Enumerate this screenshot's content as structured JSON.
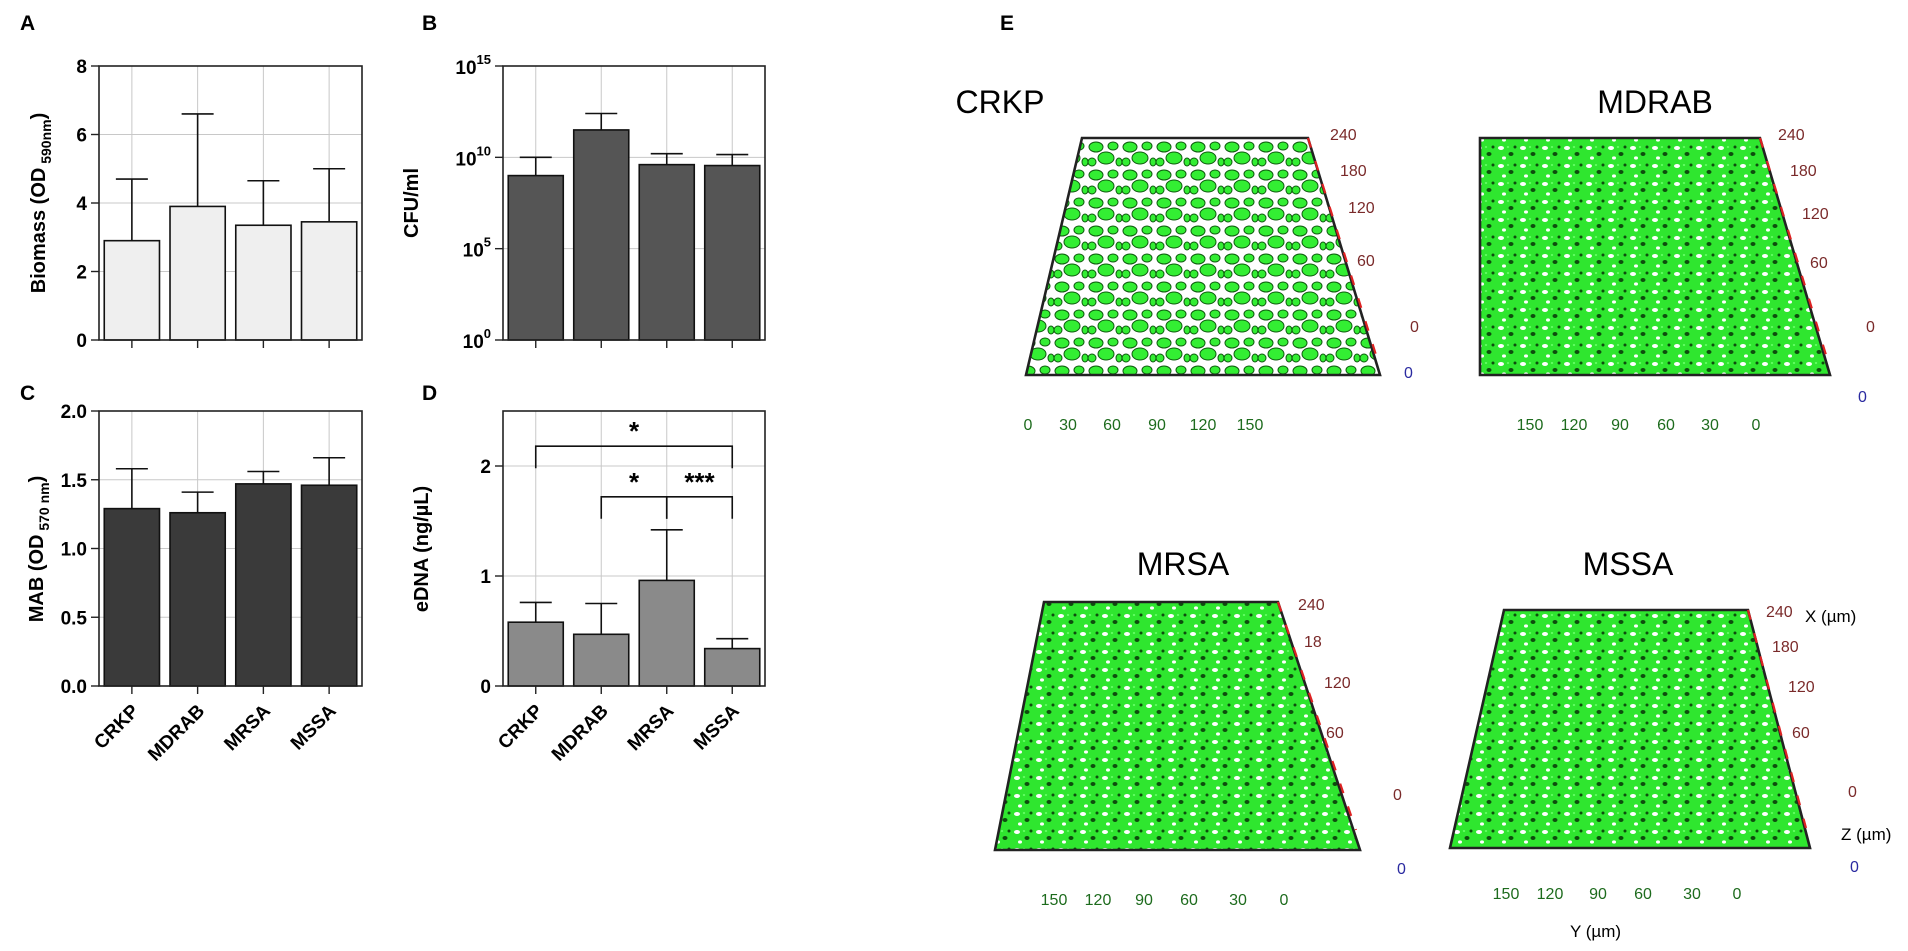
{
  "chart_data": [
    {
      "id": "A",
      "panel_label": "A",
      "type": "bar",
      "categories": [
        "CRKP",
        "MDRAB",
        "MRSA",
        "MSSA"
      ],
      "values": [
        2.9,
        3.9,
        3.35,
        3.45
      ],
      "errors": [
        1.8,
        2.7,
        1.3,
        1.55
      ],
      "ylabel_main": "Biomass (OD",
      "ylabel_sub": "590nm",
      "ylabel_close": ")",
      "ylim": [
        0,
        8
      ],
      "yticks": [
        0,
        2,
        4,
        6,
        8
      ],
      "ytick_labels": [
        "0",
        "2",
        "4",
        "6",
        "8"
      ],
      "bar_color": "#efefef",
      "show_category_labels": false
    },
    {
      "id": "B",
      "panel_label": "B",
      "type": "bar",
      "scale": "log",
      "categories": [
        "CRKP",
        "MDRAB",
        "MRSA",
        "MSSA"
      ],
      "log_values": [
        9.0,
        11.5,
        9.6,
        9.55
      ],
      "log_errors": [
        1.0,
        0.9,
        0.6,
        0.6
      ],
      "ylabel_main": "CFU/ml",
      "ylim_log": [
        0,
        15
      ],
      "yticks_log": [
        0,
        5,
        10,
        15
      ],
      "ytick_bases": [
        "10",
        "10",
        "10",
        "10"
      ],
      "ytick_exps": [
        "0",
        "5",
        "10",
        "15"
      ],
      "bar_color": "#555555",
      "show_category_labels": false
    },
    {
      "id": "C",
      "panel_label": "C",
      "type": "bar",
      "categories": [
        "CRKP",
        "MDRAB",
        "MRSA",
        "MSSA"
      ],
      "values": [
        1.29,
        1.26,
        1.47,
        1.46
      ],
      "errors": [
        0.29,
        0.15,
        0.09,
        0.2
      ],
      "ylabel_main": "MAB (OD",
      "ylabel_sub": "570 nm",
      "ylabel_close": ")",
      "ylim": [
        0,
        2.0
      ],
      "yticks": [
        0,
        0.5,
        1.0,
        1.5,
        2.0
      ],
      "ytick_labels": [
        "0.0",
        "0.5",
        "1.0",
        "1.5",
        "2.0"
      ],
      "bar_color": "#3a3a3a",
      "show_category_labels": true
    },
    {
      "id": "D",
      "panel_label": "D",
      "type": "bar",
      "categories": [
        "CRKP",
        "MDRAB",
        "MRSA",
        "MSSA"
      ],
      "values": [
        0.58,
        0.47,
        0.96,
        0.34
      ],
      "errors": [
        0.18,
        0.28,
        0.46,
        0.09
      ],
      "ylabel_main": "eDNA (ng/µL)",
      "ylim": [
        0,
        2.5
      ],
      "yticks": [
        0,
        1,
        2
      ],
      "ytick_labels": [
        "0",
        "1",
        "2"
      ],
      "bar_color": "#8a8a8a",
      "show_category_labels": true,
      "significance": [
        {
          "from": 0,
          "to": 3,
          "y": 2.18,
          "label": "*"
        },
        {
          "from": 1,
          "to": 2,
          "y": 1.72,
          "label": "*"
        },
        {
          "from": 2,
          "to": 3,
          "y": 1.72,
          "label": "***"
        }
      ]
    }
  ],
  "panel_e": {
    "panel_label": "E",
    "biofilm_color": "#33ee33",
    "images": [
      {
        "title": "CRKP",
        "x_axis_labels": [
          "240",
          "180",
          "120",
          "60"
        ],
        "z_axis_labels": [
          "0",
          "0"
        ],
        "y_axis_labels": [
          "0",
          "30",
          "60",
          "90",
          "120",
          "150"
        ]
      },
      {
        "title": "MDRAB",
        "x_axis_labels": [
          "240",
          "180",
          "120",
          "60"
        ],
        "z_axis_labels": [
          "0",
          "0"
        ],
        "y_axis_labels": [
          "150",
          "120",
          "90",
          "60",
          "30",
          "0"
        ]
      },
      {
        "title": "MRSA",
        "x_axis_labels": [
          "240",
          "18",
          "120",
          "60"
        ],
        "z_axis_labels": [
          "0",
          "0"
        ],
        "y_axis_labels": [
          "150",
          "120",
          "90",
          "60",
          "30",
          "0"
        ]
      },
      {
        "title": "MSSA",
        "x_axis_labels": [
          "240",
          "180",
          "120",
          "60"
        ],
        "z_axis_labels": [
          "0",
          "0"
        ],
        "y_axis_labels": [
          "150",
          "120",
          "90",
          "60",
          "30",
          "0"
        ]
      }
    ],
    "x_axis_title": "X (µm)",
    "z_axis_title": "Z (µm)",
    "y_axis_title": "Y (µm)"
  }
}
